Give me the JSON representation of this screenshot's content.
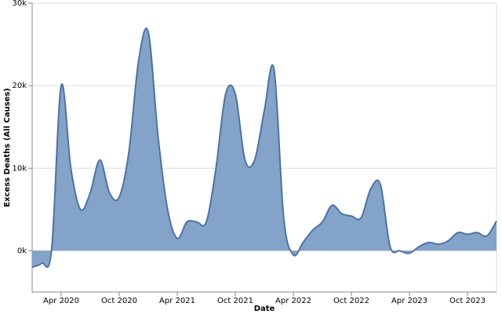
{
  "chart_data": {
    "type": "area",
    "x_label": "Date",
    "y_label": "Excess Deaths (All Causes)",
    "x": [
      "2020-01",
      "2020-02",
      "2020-03",
      "2020-04",
      "2020-05",
      "2020-06",
      "2020-07",
      "2020-08",
      "2020-09",
      "2020-10",
      "2020-11",
      "2020-12",
      "2021-01",
      "2021-02",
      "2021-03",
      "2021-04",
      "2021-05",
      "2021-06",
      "2021-07",
      "2021-08",
      "2021-09",
      "2021-10",
      "2021-11",
      "2021-12",
      "2022-01",
      "2022-02",
      "2022-03",
      "2022-04",
      "2022-05",
      "2022-06",
      "2022-07",
      "2022-08",
      "2022-09",
      "2022-10",
      "2022-11",
      "2022-12",
      "2023-01",
      "2023-02",
      "2023-03",
      "2023-04",
      "2023-05",
      "2023-06",
      "2023-07",
      "2023-08",
      "2023-09",
      "2023-10",
      "2023-11",
      "2023-12",
      "2024-01"
    ],
    "series": [
      {
        "name": "Excess Deaths",
        "color": "#4c72a9",
        "fill": "#84a3c8",
        "values": [
          -2000,
          -1500,
          0,
          20000,
          10000,
          5000,
          7000,
          11000,
          7000,
          6500,
          12000,
          23000,
          26500,
          14000,
          5000,
          1500,
          3500,
          3500,
          3500,
          10000,
          19000,
          19000,
          11000,
          11000,
          17000,
          22000,
          4000,
          -500,
          1000,
          2500,
          3500,
          5500,
          4500,
          4200,
          4000,
          7500,
          8000,
          500,
          0,
          -300,
          500,
          1000,
          800,
          1200,
          2200,
          2000,
          2200,
          1800,
          3600
        ]
      }
    ],
    "xlim": [
      "2020-01",
      "2024-01"
    ],
    "xticks": [
      {
        "value": "2020-04",
        "label": "Apr 2020"
      },
      {
        "value": "2020-10",
        "label": "Oct 2020"
      },
      {
        "value": "2021-04",
        "label": "Apr 2021"
      },
      {
        "value": "2021-10",
        "label": "Oct 2021"
      },
      {
        "value": "2022-04",
        "label": "Apr 2022"
      },
      {
        "value": "2022-10",
        "label": "Oct 2022"
      },
      {
        "value": "2023-04",
        "label": "Apr 2023"
      },
      {
        "value": "2023-10",
        "label": "Oct 2023"
      }
    ],
    "ylim": [
      -5000,
      30000
    ],
    "yticks": [
      {
        "value": 0,
        "label": "0k"
      },
      {
        "value": 10000,
        "label": "10k"
      },
      {
        "value": 20000,
        "label": "20k"
      },
      {
        "value": 30000,
        "label": "30k"
      }
    ],
    "grid": true
  }
}
